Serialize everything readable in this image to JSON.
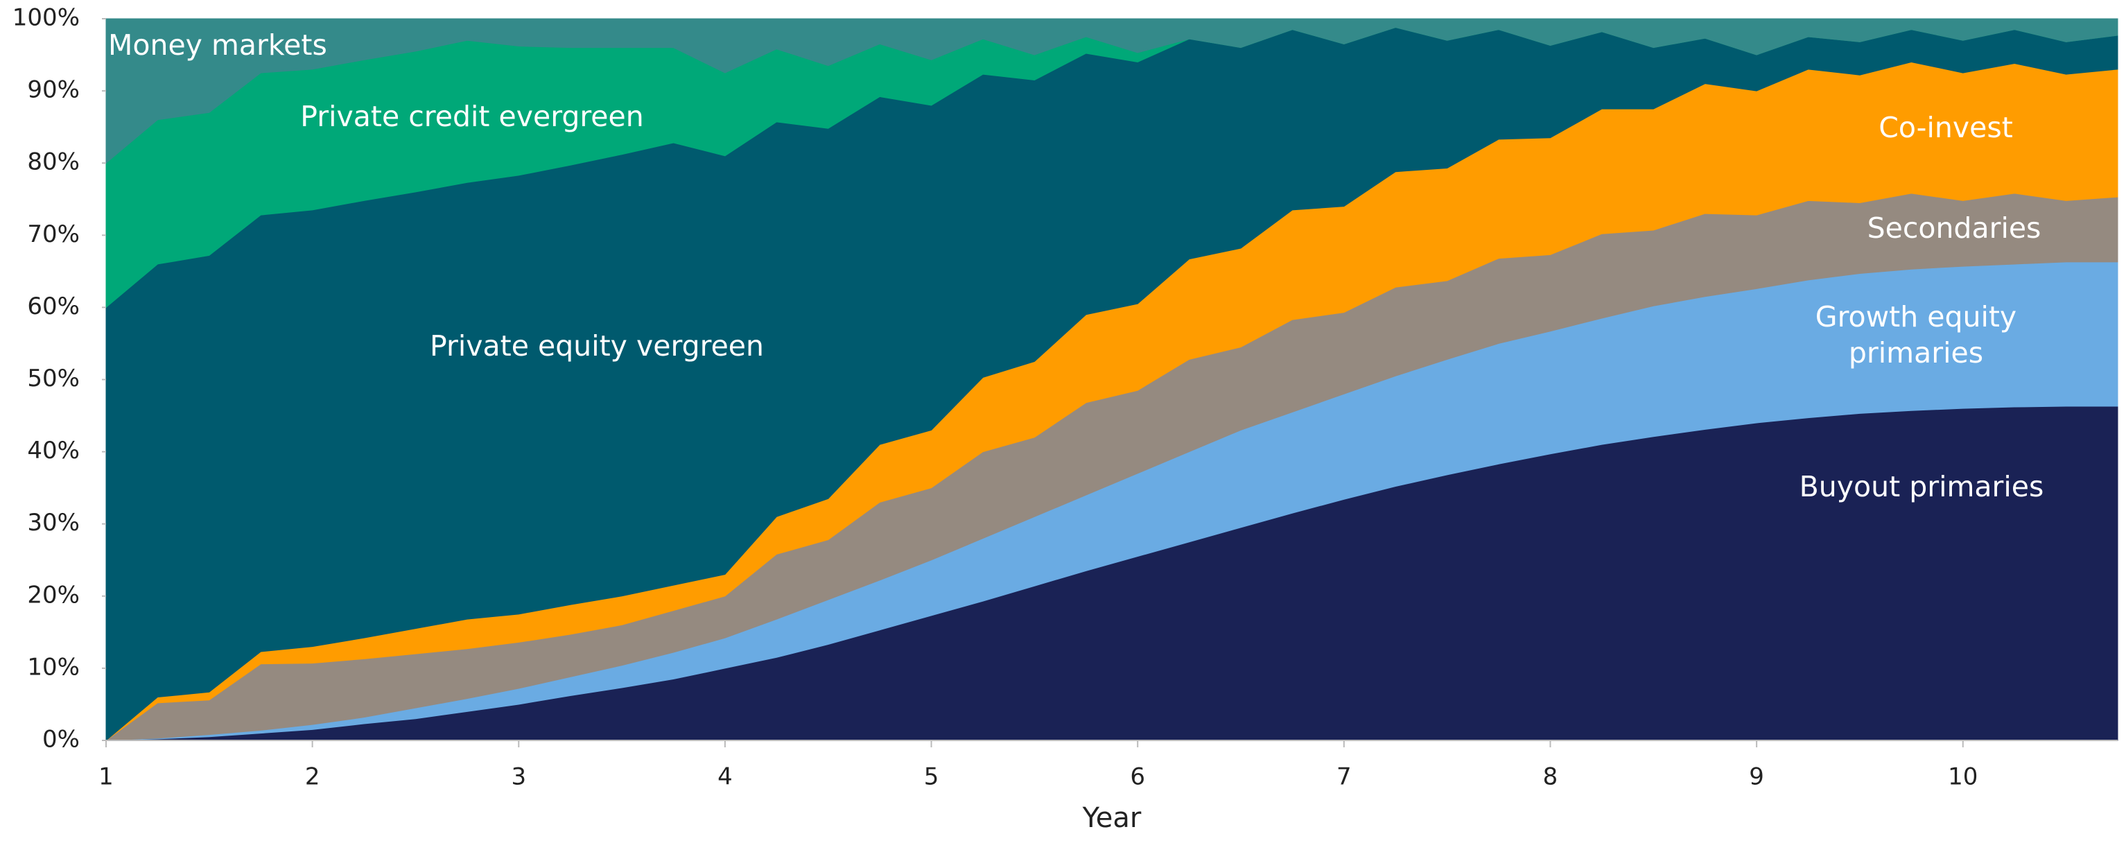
{
  "chart_data": {
    "type": "stacked_area",
    "xlabel": "Year",
    "x": [
      1,
      1.25,
      1.5,
      1.75,
      2,
      2.25,
      2.5,
      2.75,
      3,
      3.25,
      3.5,
      3.75,
      4,
      4.25,
      4.5,
      4.75,
      5,
      5.25,
      5.5,
      5.75,
      6,
      6.25,
      6.5,
      6.75,
      7,
      7.25,
      7.5,
      7.75,
      8,
      8.25,
      8.5,
      8.75,
      9,
      9.25,
      9.5,
      9.75,
      10,
      10.25,
      10.5,
      10.75
    ],
    "xlim": [
      1,
      10.75
    ],
    "xticks": [
      1,
      2,
      3,
      4,
      5,
      6,
      7,
      8,
      9,
      10
    ],
    "ylim": [
      0,
      100
    ],
    "yticks": [
      {
        "value": 0,
        "label": "0%"
      },
      {
        "value": 10,
        "label": "10%"
      },
      {
        "value": 20,
        "label": "20%"
      },
      {
        "value": 30,
        "label": "30%"
      },
      {
        "value": 40,
        "label": "40%"
      },
      {
        "value": 50,
        "label": "50%"
      },
      {
        "value": 60,
        "label": "60%"
      },
      {
        "value": 70,
        "label": "70%"
      },
      {
        "value": 80,
        "label": "80%"
      },
      {
        "value": 90,
        "label": "90%"
      },
      {
        "value": 100,
        "label": "100%"
      }
    ],
    "series": [
      {
        "name": "Buyout primaries",
        "color": "#1a2255",
        "values": [
          0,
          0.2,
          0.5,
          1,
          1.5,
          2.3,
          3,
          4,
          5,
          6.2,
          7.3,
          8.5,
          10,
          11.5,
          13.3,
          15.3,
          17.3,
          19.3,
          21.4,
          23.5,
          25.5,
          27.5,
          29.5,
          31.5,
          33.4,
          35.2,
          36.8,
          38.3,
          39.7,
          41,
          42.1,
          43.1,
          44,
          44.7,
          45.3,
          45.7,
          46,
          46.2,
          46.3,
          46.3
        ]
      },
      {
        "name": "Growth equity primaries",
        "color": "#6aabe3",
        "values": [
          0,
          0.1,
          0.3,
          0.4,
          0.7,
          0.9,
          1.5,
          1.8,
          2.2,
          2.6,
          3.1,
          3.7,
          4.2,
          5.3,
          6.2,
          6.9,
          7.7,
          8.7,
          9.6,
          10.5,
          11.5,
          12.5,
          13.5,
          14,
          14.6,
          15.3,
          16,
          16.7,
          17,
          17.5,
          18.1,
          18.4,
          18.6,
          19.1,
          19.4,
          19.6,
          19.7,
          19.8,
          20,
          20
        ]
      },
      {
        "name": "Secondaries",
        "color": "#958a80",
        "values": [
          0,
          4.9,
          4.8,
          9.2,
          8.5,
          8.1,
          7.5,
          6.9,
          6.4,
          5.9,
          5.6,
          5.8,
          5.8,
          9,
          8.3,
          10.8,
          10,
          12,
          11,
          12.8,
          11.5,
          12.8,
          11.5,
          12.8,
          11.3,
          12.3,
          10.9,
          11.8,
          10.6,
          11.7,
          10.5,
          11.5,
          10.2,
          11,
          9.8,
          10.5,
          9.1,
          9.8,
          8.5,
          9
        ]
      },
      {
        "name": "Co-invest",
        "color": "#ff9c00",
        "values": [
          0,
          0.8,
          1.1,
          1.7,
          2.3,
          2.9,
          3.5,
          4.1,
          3.9,
          4.1,
          4,
          3.5,
          3,
          5.2,
          5.7,
          8,
          8,
          10.3,
          10.5,
          12.2,
          12,
          13.9,
          13.7,
          15.2,
          14.7,
          16,
          15.6,
          16.5,
          16.2,
          17.3,
          16.8,
          18,
          17.2,
          18.2,
          17.7,
          18.2,
          17.7,
          18,
          17.5,
          17.7
        ]
      },
      {
        "name": "Private equity vergreen",
        "color": "#005a6e",
        "values": [
          60,
          60,
          60.5,
          60.5,
          60.5,
          60.6,
          60.5,
          60.5,
          60.8,
          60.9,
          61.2,
          61.3,
          58,
          54.7,
          51.3,
          48.2,
          45,
          42,
          39,
          36.2,
          33.5,
          30.5,
          27.8,
          25,
          22.5,
          20,
          17.7,
          15.2,
          12.8,
          10.7,
          8.5,
          6.3,
          5,
          4.5,
          4.6,
          4.5,
          4.5,
          4.7,
          4.5,
          4.7
        ]
      },
      {
        "name": "Private credit evergreen",
        "color": "#00a878",
        "values": [
          20,
          20,
          19.8,
          19.7,
          19.5,
          19.5,
          19.5,
          19.7,
          17.9,
          16.3,
          14.8,
          13.2,
          11.5,
          10.1,
          8.7,
          7.3,
          6.3,
          4.9,
          3.5,
          2.3,
          1.3,
          0,
          0,
          0,
          0,
          0,
          0,
          0,
          0,
          0,
          0,
          0,
          0,
          0,
          0,
          0,
          0,
          0,
          0,
          0
        ]
      },
      {
        "name": "Money markets",
        "color": "#348a8a",
        "values": [
          20,
          14,
          13,
          7.5,
          7,
          5.7,
          4.5,
          3,
          3.8,
          4,
          4,
          4,
          7.5,
          4.2,
          6.5,
          3.5,
          5.7,
          2.8,
          5,
          2.5,
          4.7,
          2.8,
          4,
          1.5,
          3.5,
          1.2,
          3,
          1.5,
          3.7,
          1.8,
          4,
          2.7,
          5,
          2.5,
          3.2,
          1.5,
          3,
          1.5,
          3.2,
          2.3
        ]
      }
    ]
  }
}
